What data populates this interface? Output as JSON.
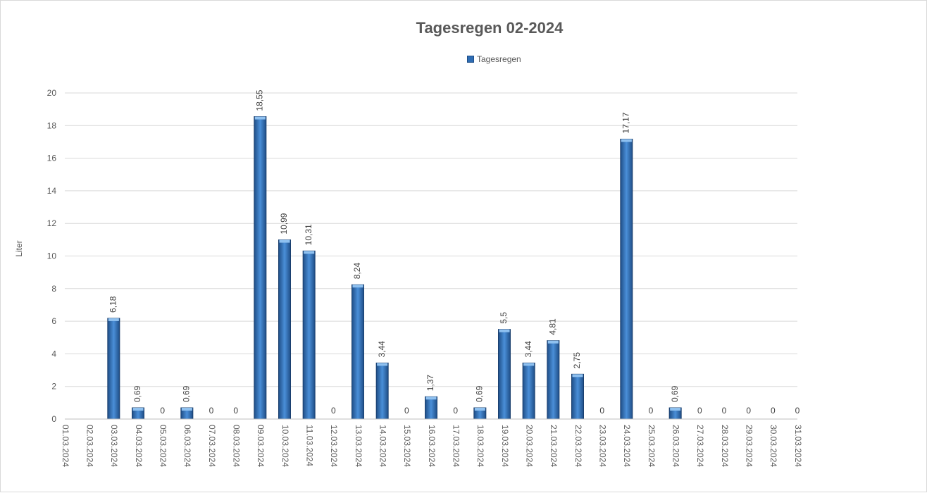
{
  "chart_data": {
    "type": "bar",
    "title": "Tagesregen 02-2024",
    "ylabel": "Liter",
    "xlabel": "",
    "ylim": [
      0,
      20
    ],
    "yticks": [
      0,
      2,
      4,
      6,
      8,
      10,
      12,
      14,
      16,
      18,
      20
    ],
    "grid": true,
    "legend_position": "top",
    "bar_color": "#2e6db4",
    "categories": [
      "01.03.2024",
      "02.03.2024",
      "03.03.2024",
      "04.03.2024",
      "05.03.2024",
      "06.03.2024",
      "07.03.2024",
      "08.03.2024",
      "09.03.2024",
      "10.03.2024",
      "11.03.2024",
      "12.03.2024",
      "13.03.2024",
      "14.03.2024",
      "15.03.2024",
      "16.03.2024",
      "17.03.2024",
      "18.03.2024",
      "19.03.2024",
      "20.03.2024",
      "21.03.2024",
      "22.03.2024",
      "23.03.2024",
      "24.03.2024",
      "25.03.2024",
      "26.03.2024",
      "27.03.2024",
      "28.03.2024",
      "29.03.2024",
      "30.03.2024",
      "31.03.2024"
    ],
    "series": [
      {
        "name": "Tagesregen",
        "values": [
          null,
          null,
          6.18,
          0.69,
          0,
          0.69,
          0,
          0,
          18.55,
          10.99,
          10.31,
          0,
          8.24,
          3.44,
          0,
          1.37,
          0,
          0.69,
          5.5,
          3.44,
          4.81,
          2.75,
          0,
          17.17,
          0,
          0.69,
          0,
          0,
          0,
          0,
          0
        ],
        "labels": [
          "",
          "",
          "6,18",
          "0,69",
          "0",
          "0,69",
          "0",
          "0",
          "18,55",
          "10,99",
          "10,31",
          "0",
          "8,24",
          "3,44",
          "0",
          "1,37",
          "0",
          "0,69",
          "5,5",
          "3,44",
          "4,81",
          "2,75",
          "0",
          "17,17",
          "0",
          "0,69",
          "0",
          "0",
          "0",
          "0",
          "0"
        ]
      }
    ]
  }
}
